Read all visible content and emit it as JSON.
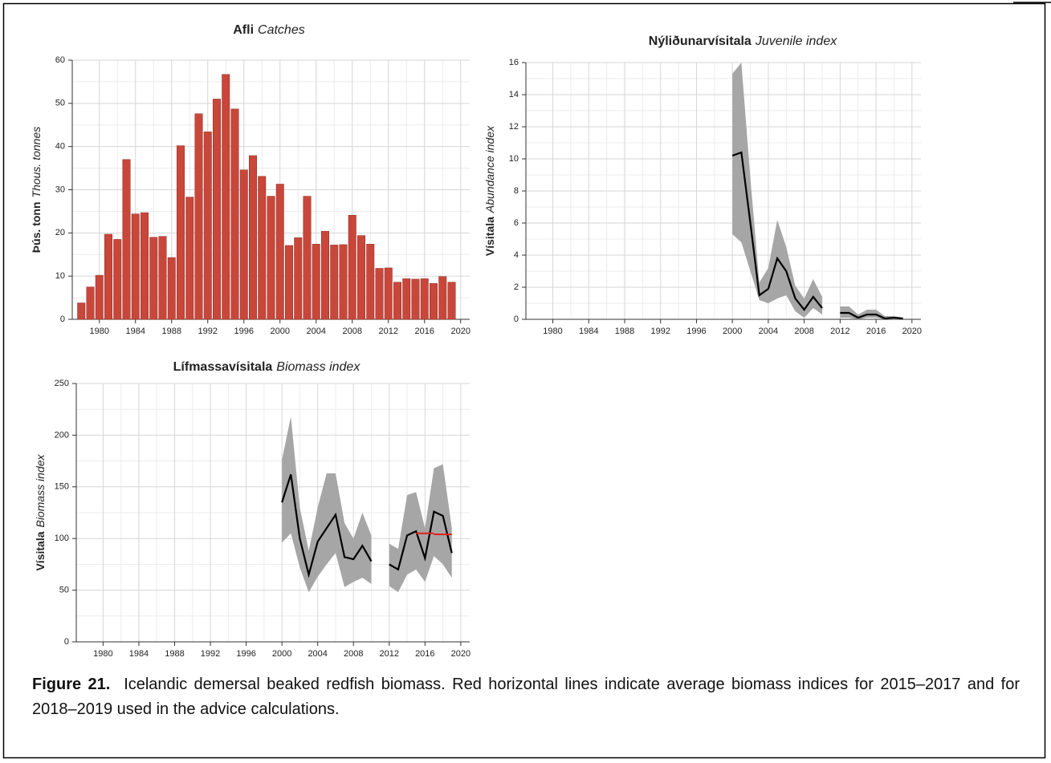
{
  "chart_data": [
    {
      "type": "bar",
      "title": [
        "Afli",
        "Catches"
      ],
      "ylabel": [
        "Þús. tonn",
        "Thous. tonnes"
      ],
      "x": [
        1978,
        1979,
        1980,
        1981,
        1982,
        1983,
        1984,
        1985,
        1986,
        1987,
        1988,
        1989,
        1990,
        1991,
        1992,
        1993,
        1994,
        1995,
        1996,
        1997,
        1998,
        1999,
        2000,
        2001,
        2002,
        2003,
        2004,
        2005,
        2006,
        2007,
        2008,
        2009,
        2010,
        2011,
        2012,
        2013,
        2014,
        2015,
        2016,
        2017,
        2018,
        2019
      ],
      "values": [
        3.8,
        7.5,
        10.2,
        19.7,
        18.5,
        37,
        24.4,
        24.7,
        19,
        19.2,
        14.3,
        40.2,
        28.3,
        47.6,
        43.4,
        51,
        56.7,
        48.7,
        34.6,
        37.9,
        33.1,
        28.5,
        31.3,
        17.1,
        18.9,
        28.5,
        17.4,
        20.4,
        17.2,
        17.3,
        24.1,
        19.4,
        17.4,
        11.8,
        11.9,
        8.6,
        9.4,
        9.3,
        9.4,
        8.3,
        9.9,
        8.6
      ],
      "color": "#c9473a",
      "xlim": [
        1977,
        2021
      ],
      "xticks": [
        1980,
        1984,
        1988,
        1992,
        1996,
        2000,
        2004,
        2008,
        2012,
        2016,
        2020
      ],
      "ylim": [
        0,
        60
      ],
      "yticks": [
        0,
        10,
        20,
        30,
        40,
        50,
        60
      ],
      "grid": true
    },
    {
      "type": "line",
      "title": [
        "Nýliðunarvísitala",
        "Juvenile index"
      ],
      "ylabel": [
        "Vísitala",
        "Abundance index"
      ],
      "x": [
        2000,
        2001,
        2002,
        2003,
        2004,
        2005,
        2006,
        2007,
        2008,
        2009,
        2010,
        2011,
        2012,
        2013,
        2014,
        2015,
        2016,
        2017,
        2018,
        2019
      ],
      "series": [
        {
          "color": "#000000",
          "band_color": "#a6a6a6",
          "values": [
            10.2,
            10.4,
            6,
            1.5,
            1.9,
            3.8,
            3,
            1.3,
            0.6,
            1.4,
            0.7,
            null,
            0.4,
            0.4,
            0.1,
            0.3,
            0.3,
            0.05,
            0.1,
            0.05
          ],
          "lower": [
            5.3,
            4.8,
            3,
            1.2,
            1,
            1.3,
            1.5,
            0.5,
            0.1,
            0.7,
            0.3,
            null,
            0.1,
            0.1,
            0,
            0.1,
            0.1,
            0,
            0,
            0
          ],
          "upper": [
            15.3,
            16,
            8.8,
            2.3,
            3.2,
            6.2,
            4.5,
            2.1,
            1.3,
            2.5,
            1.4,
            null,
            0.8,
            0.8,
            0.3,
            0.6,
            0.6,
            0.2,
            0.2,
            0.1
          ]
        }
      ],
      "xlim": [
        1977,
        2021
      ],
      "xticks": [
        1980,
        1984,
        1988,
        1992,
        1996,
        2000,
        2004,
        2008,
        2012,
        2016,
        2020
      ],
      "ylim": [
        0,
        16
      ],
      "yticks": [
        0,
        2,
        4,
        6,
        8,
        10,
        12,
        14,
        16
      ],
      "grid": true
    },
    {
      "type": "line",
      "title": [
        "Lífmassavísitala",
        "Biomass index"
      ],
      "ylabel": [
        "Vísitala",
        "Biomass index"
      ],
      "x": [
        2000,
        2001,
        2002,
        2003,
        2004,
        2005,
        2006,
        2007,
        2008,
        2009,
        2010,
        2011,
        2012,
        2013,
        2014,
        2015,
        2016,
        2017,
        2018,
        2019
      ],
      "series": [
        {
          "color": "#000000",
          "band_color": "#a6a6a6",
          "values": [
            135,
            162,
            100,
            65,
            97,
            110,
            123,
            82,
            80,
            93,
            78,
            null,
            75,
            70,
            103,
            107,
            81,
            126,
            122,
            86
          ],
          "lower": [
            96,
            105,
            72,
            48,
            63,
            75,
            86,
            53,
            58,
            62,
            56,
            null,
            54,
            48,
            65,
            70,
            58,
            83,
            75,
            62
          ],
          "upper": [
            176,
            218,
            130,
            88,
            130,
            163,
            163,
            115,
            100,
            125,
            103,
            null,
            95,
            90,
            142,
            145,
            110,
            168,
            172,
            110
          ]
        }
      ],
      "ref_lines": [
        {
          "x": [
            2015,
            2017
          ],
          "value": 105,
          "color": "#e0201b"
        },
        {
          "x": [
            2017,
            2019
          ],
          "value": 104,
          "color": "#e0201b"
        }
      ],
      "xlim": [
        1977,
        2021
      ],
      "xticks": [
        1980,
        1984,
        1988,
        1992,
        1996,
        2000,
        2004,
        2008,
        2012,
        2016,
        2020
      ],
      "ylim": [
        0,
        250
      ],
      "yticks": [
        0,
        50,
        100,
        150,
        200,
        250
      ],
      "grid": true
    }
  ],
  "caption": {
    "label": "Figure 21.",
    "text": "Icelandic demersal beaked redfish biomass. Red horizontal lines indicate average biomass indices for 2015–2017 and for 2018–2019 used in the advice calculations."
  }
}
